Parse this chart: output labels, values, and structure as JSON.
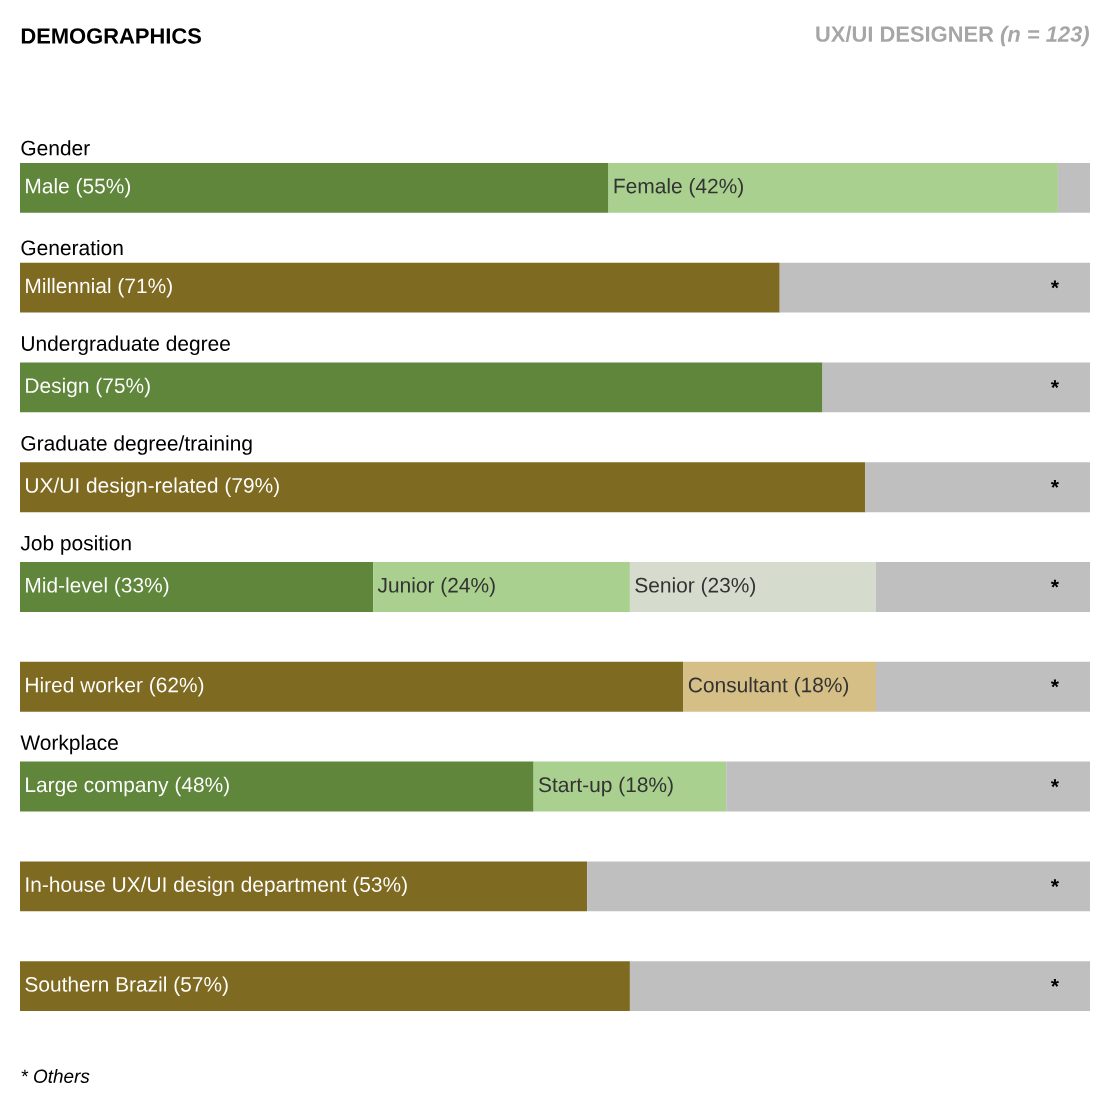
{
  "chart_data": {
    "type": "bar",
    "orientation": "horizontal",
    "stacked": true,
    "title": "DEMOGRAPHICS",
    "subtitle": "UX/UI DESIGNER *(n = 123)*",
    "categories": [
      "Gender",
      "Generation",
      "Undergraduate degree",
      "Graduate degree/training",
      "Job position",
      null,
      "Workplace",
      null,
      null
    ],
    "xlim": [
      0,
      100
    ],
    "series": [
      {
        "values": [
          55,
          71,
          75,
          79,
          33,
          62,
          48,
          53,
          57
        ],
        "colors": [
          "#5f863b",
          "#7f6a22",
          "#5f863b",
          "#7f6a22",
          "#5f863b",
          "#7f6a22",
          "#5f863b",
          "#7f6a22",
          "#7f6a22"
        ],
        "value_labels": [
          "Male (55%)",
          "Millennial (71%)",
          "Design (75%)",
          "UX/UI design-related (79%)",
          "Mid-level (33%)",
          "Hired worker (62%)",
          "Large company (48%)",
          "In-house UX/UI design department (53%)",
          "Southern Brazil (57%)"
        ]
      },
      {
        "values": [
          42,
          null,
          null,
          null,
          24,
          18,
          18,
          null,
          null
        ],
        "colors": [
          "#a9d08e",
          null,
          null,
          null,
          "#a9d08e",
          "#d5bf86",
          "#a9d08e",
          null,
          null
        ],
        "value_labels": [
          "Female (42%)",
          null,
          null,
          null,
          "Junior (24%)",
          "Consultant (18%)",
          "Start-up (18%)",
          null,
          null
        ]
      },
      {
        "values": [
          null,
          null,
          null,
          null,
          23,
          null,
          null,
          null,
          null
        ],
        "colors": [
          null,
          null,
          null,
          null,
          "#d6dccd",
          null,
          null,
          null,
          null
        ],
        "value_labels": [
          null,
          null,
          null,
          null,
          "Senior (23%)",
          null,
          null,
          null,
          null
        ]
      },
      {
        "values": [
          3,
          29,
          25,
          21,
          20,
          20,
          34,
          47,
          43
        ],
        "color": "#bfbfbf",
        "value_labels": [
          null,
          "*",
          "*",
          "*",
          "*",
          "*",
          "*",
          "*",
          "*"
        ]
      }
    ],
    "annotations": [
      "* Others"
    ]
  }
}
